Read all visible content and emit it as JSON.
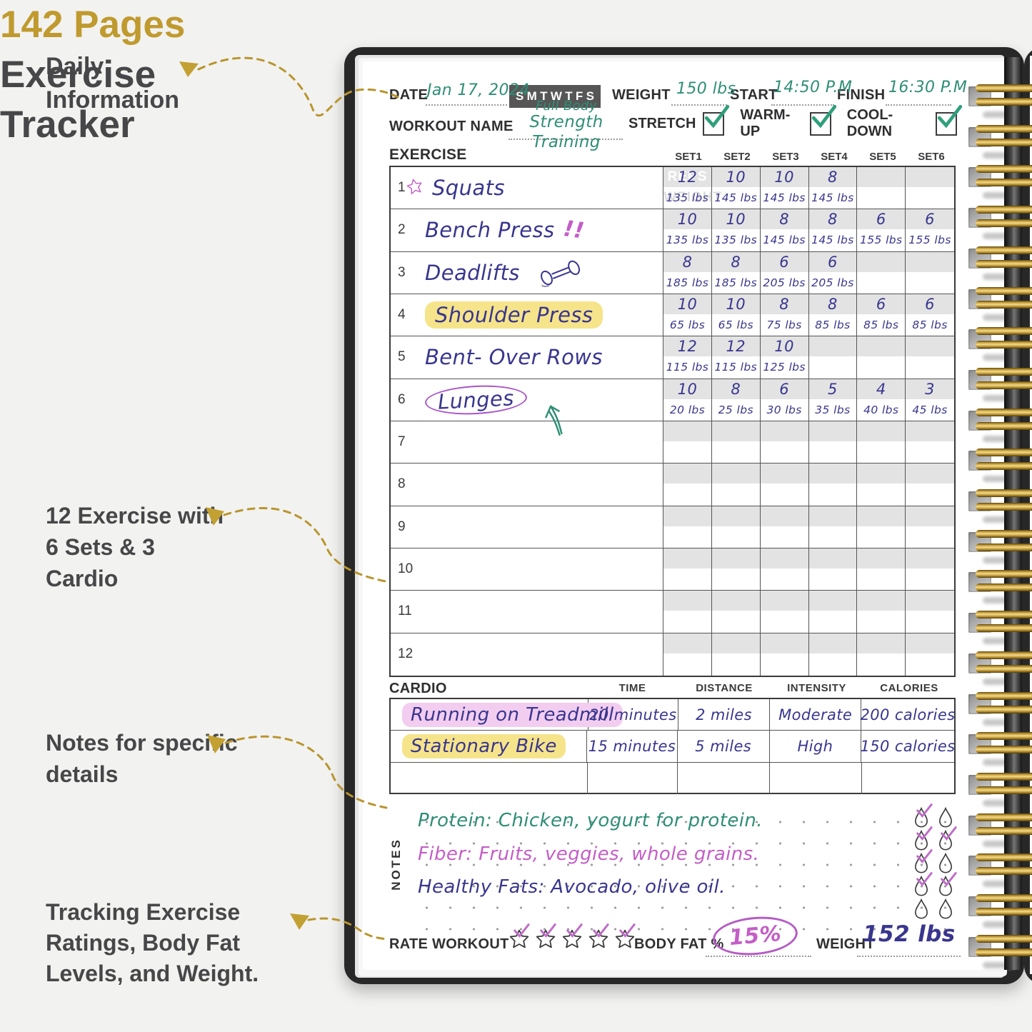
{
  "annotations": {
    "daily_information": "Daily Information",
    "pages_count": "142 Pages",
    "pages_title": "Exercise Tracker",
    "exercise_sets": "12 Exercise with 6 Sets & 3 Cardio",
    "notes_callout": "Notes for specific details",
    "tracking_callout": "Tracking Exercise Ratings, Body Fat Levels, and Weight."
  },
  "notebook": {
    "header": {
      "date_label": "DATE",
      "date_value": "Jan 17, 2024",
      "days": [
        "S",
        "M",
        "T",
        "W",
        "T",
        "F",
        "S"
      ],
      "weight_label": "WEIGHT",
      "weight_value": "150 lbs",
      "start_label": "START",
      "start_value": "14:50 P.M",
      "finish_label": "FINISH",
      "finish_value": "16:30 P.M",
      "workout_name_label": "WORKOUT NAME",
      "workout_name_line1": "Full Body",
      "workout_name_line2": "Strength Training",
      "checkboxes": [
        {
          "label": "STRETCH",
          "checked": true
        },
        {
          "label": "WARM-UP",
          "checked": true
        },
        {
          "label": "COOL-DOWN",
          "checked": true
        }
      ]
    },
    "exercise_table": {
      "title": "EXERCISE",
      "set_headers": [
        "SET1",
        "SET2",
        "SET3",
        "SET4",
        "SET5",
        "SET6"
      ],
      "reps_watermark": "REPS",
      "weight_watermark": "WEIGHT",
      "rows": [
        {
          "num": "1",
          "name": "Squats",
          "decoration": "star-icon",
          "reps": [
            "12",
            "10",
            "10",
            "8",
            "",
            ""
          ],
          "weights": [
            "135 lbs",
            "145 lbs",
            "145 lbs",
            "145 lbs",
            "",
            ""
          ]
        },
        {
          "num": "2",
          "name": "Bench Press",
          "decoration": "exclamation-doodle",
          "reps": [
            "10",
            "10",
            "8",
            "8",
            "6",
            "6"
          ],
          "weights": [
            "135 lbs",
            "135 lbs",
            "145 lbs",
            "145 lbs",
            "155 lbs",
            "155 lbs"
          ]
        },
        {
          "num": "3",
          "name": "Deadlifts",
          "decoration": "dumbbell-icon",
          "reps": [
            "8",
            "8",
            "6",
            "6",
            "",
            ""
          ],
          "weights": [
            "185 lbs",
            "185 lbs",
            "205 lbs",
            "205 lbs",
            "",
            ""
          ]
        },
        {
          "num": "4",
          "name": "Shoulder Press",
          "decoration": "highlight-yellow",
          "reps": [
            "10",
            "10",
            "8",
            "8",
            "6",
            "6"
          ],
          "weights": [
            "65 lbs",
            "65 lbs",
            "75 lbs",
            "85 lbs",
            "85 lbs",
            "85 lbs"
          ]
        },
        {
          "num": "5",
          "name": "Bent- Over Rows",
          "decoration": "",
          "reps": [
            "12",
            "12",
            "10",
            "",
            "",
            ""
          ],
          "weights": [
            "115 lbs",
            "115 lbs",
            "125 lbs",
            "",
            "",
            ""
          ]
        },
        {
          "num": "6",
          "name": "Lunges",
          "decoration": "circle-arrow",
          "reps": [
            "10",
            "8",
            "6",
            "5",
            "4",
            "3"
          ],
          "weights": [
            "20 lbs",
            "25 lbs",
            "30 lbs",
            "35 lbs",
            "40 lbs",
            "45 lbs"
          ]
        },
        {
          "num": "7",
          "name": "",
          "decoration": "",
          "reps": [
            "",
            "",
            "",
            "",
            "",
            ""
          ],
          "weights": [
            "",
            "",
            "",
            "",
            "",
            ""
          ]
        },
        {
          "num": "8",
          "name": "",
          "decoration": "",
          "reps": [
            "",
            "",
            "",
            "",
            "",
            ""
          ],
          "weights": [
            "",
            "",
            "",
            "",
            "",
            ""
          ]
        },
        {
          "num": "9",
          "name": "",
          "decoration": "",
          "reps": [
            "",
            "",
            "",
            "",
            "",
            ""
          ],
          "weights": [
            "",
            "",
            "",
            "",
            "",
            ""
          ]
        },
        {
          "num": "10",
          "name": "",
          "decoration": "",
          "reps": [
            "",
            "",
            "",
            "",
            "",
            ""
          ],
          "weights": [
            "",
            "",
            "",
            "",
            "",
            ""
          ]
        },
        {
          "num": "11",
          "name": "",
          "decoration": "",
          "reps": [
            "",
            "",
            "",
            "",
            "",
            ""
          ],
          "weights": [
            "",
            "",
            "",
            "",
            "",
            ""
          ]
        },
        {
          "num": "12",
          "name": "",
          "decoration": "",
          "reps": [
            "",
            "",
            "",
            "",
            "",
            ""
          ],
          "weights": [
            "",
            "",
            "",
            "",
            "",
            ""
          ]
        }
      ]
    },
    "cardio_table": {
      "title": "CARDIO",
      "headers": [
        "TIME",
        "DISTANCE",
        "INTENSITY",
        "CALORIES"
      ],
      "rows": [
        {
          "name": "Running on Treadmill",
          "highlight": "pink",
          "time": "20 minutes",
          "distance": "2 miles",
          "intensity": "Moderate",
          "calories": "200 calories"
        },
        {
          "name": "Stationary Bike",
          "highlight": "yellow",
          "time": "15 minutes",
          "distance": "5 miles",
          "intensity": "High",
          "calories": "150 calories"
        },
        {
          "name": "",
          "highlight": "",
          "time": "",
          "distance": "",
          "intensity": "",
          "calories": ""
        }
      ]
    },
    "notes": {
      "label": "NOTES",
      "lines": [
        {
          "text": "Protein: Chicken, yogurt for protein.",
          "color": "green"
        },
        {
          "text": "Fiber: Fruits, veggies, whole grains.",
          "color": "pink"
        },
        {
          "text": "Healthy Fats: Avocado, olive oil.",
          "color": "navy"
        }
      ],
      "droplets": [
        [
          true,
          false
        ],
        [
          true,
          true
        ],
        [
          true,
          false
        ],
        [
          true,
          true
        ],
        [
          false,
          false
        ]
      ]
    },
    "footer": {
      "rate_label": "RATE WORKOUT",
      "stars": [
        true,
        true,
        true,
        true,
        true
      ],
      "bodyfat_label": "BODY FAT %",
      "bodyfat_value": "15%",
      "weight_label": "WEIGHT",
      "weight_value": "152 lbs"
    },
    "colors": {
      "gold": "#c09a2e",
      "ink_green": "#2f8e76",
      "ink_navy": "#39368e",
      "ink_pink": "#c35ec6",
      "highlight_yellow": "#f6e48b",
      "highlight_pink": "#f2cdf0"
    }
  }
}
